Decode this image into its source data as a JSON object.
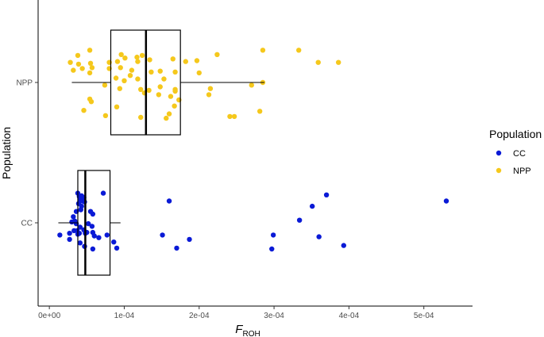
{
  "chart_data": {
    "type": "boxplot_jitter",
    "orientation": "horizontal",
    "xlabel_main": "F",
    "xlabel_sub": "ROH",
    "ylabel": "Population",
    "xlim": [
      -1.5e-05,
      0.000565
    ],
    "x_ticks": [
      0,
      0.0001,
      0.0002,
      0.0003,
      0.0004,
      0.0005
    ],
    "x_tick_labels": [
      "0e+00",
      "1e-04",
      "2e-04",
      "3e-04",
      "4e-04",
      "5e-04"
    ],
    "categories": [
      "CC",
      "NPP"
    ],
    "legend": {
      "title": "Population",
      "entries": [
        {
          "label": "CC",
          "color": "#0a1ad6"
        },
        {
          "label": "NPP",
          "color": "#f5c81c"
        }
      ]
    },
    "boxes": [
      {
        "category": "CC",
        "whisker_low": 1.2e-05,
        "q1": 3.8e-05,
        "median": 4.8e-05,
        "q3": 8.1e-05,
        "whisker_high": 9.5e-05
      },
      {
        "category": "NPP",
        "whisker_low": 3e-05,
        "q1": 8.2e-05,
        "median": 0.000129,
        "q3": 0.000175,
        "whisker_high": 0.000287
      }
    ],
    "series": [
      {
        "name": "CC",
        "color": "#0a1ad6",
        "points": [
          [
            3.8e-05,
            0.34
          ],
          [
            4e-05,
            0.3
          ],
          [
            4.3e-05,
            0.31
          ],
          [
            4.1e-05,
            0.27
          ],
          [
            4.6e-05,
            0.29
          ],
          [
            4.4e-05,
            0.25
          ],
          [
            3.9e-05,
            0.22
          ],
          [
            4.7e-05,
            0.24
          ],
          [
            4.3e-05,
            0.19
          ],
          [
            4.2e-05,
            0.15
          ],
          [
            3.6e-05,
            0.13
          ],
          [
            5.5e-05,
            0.13
          ],
          [
            5.8e-05,
            0.1
          ],
          [
            3.2e-05,
            0.07
          ],
          [
            3.4e-05,
            0.02
          ],
          [
            3e-05,
            0.01
          ],
          [
            3.6e-05,
            -0.01
          ],
          [
            5.2e-05,
            -0.01
          ],
          [
            4.1e-05,
            -0.05
          ],
          [
            5.7e-05,
            -0.04
          ],
          [
            4.6e-05,
            -0.08
          ],
          [
            3.3e-05,
            -0.09
          ],
          [
            3.7e-05,
            -0.09
          ],
          [
            5e-05,
            -0.11
          ],
          [
            4e-05,
            -0.12
          ],
          [
            2.7e-05,
            -0.12
          ],
          [
            5.8e-05,
            -0.11
          ],
          [
            4.8e-05,
            -0.12
          ],
          [
            3.8e-05,
            -0.13
          ],
          [
            1.4e-05,
            -0.14
          ],
          [
            6e-05,
            -0.15
          ],
          [
            7.7e-05,
            -0.14
          ],
          [
            6.6e-05,
            -0.17
          ],
          [
            2.7e-05,
            -0.19
          ],
          [
            4.1e-05,
            -0.23
          ],
          [
            4.7e-05,
            -0.27
          ],
          [
            5.8e-05,
            -0.3
          ],
          [
            9e-05,
            -0.29
          ],
          [
            7.2e-05,
            0.34
          ],
          [
            8.6e-05,
            -0.22
          ],
          [
            0.00016,
            0.25
          ],
          [
            0.000151,
            -0.14
          ],
          [
            0.000187,
            -0.19
          ],
          [
            0.00017,
            -0.29
          ],
          [
            0.000297,
            -0.3
          ],
          [
            0.000299,
            -0.14
          ],
          [
            0.000334,
            0.03
          ],
          [
            0.000351,
            0.19
          ],
          [
            0.00037,
            0.32
          ],
          [
            0.00036,
            -0.16
          ],
          [
            0.000393,
            -0.26
          ],
          [
            0.00053,
            0.25
          ]
        ]
      },
      {
        "name": "NPP",
        "color": "#f5c81c",
        "points": [
          [
            5.4e-05,
            0.37
          ],
          [
            3.8e-05,
            0.31
          ],
          [
            9.6e-05,
            0.32
          ],
          [
            0.000117,
            0.29
          ],
          [
            0.000124,
            0.31
          ],
          [
            0.000101,
            0.28
          ],
          [
            2.8e-05,
            0.23
          ],
          [
            3.9e-05,
            0.21
          ],
          [
            5.5e-05,
            0.22
          ],
          [
            8e-05,
            0.23
          ],
          [
            9.1e-05,
            0.24
          ],
          [
            0.000118,
            0.24
          ],
          [
            0.000134,
            0.26
          ],
          [
            0.000165,
            0.27
          ],
          [
            0.000182,
            0.24
          ],
          [
            0.000197,
            0.25
          ],
          [
            0.000224,
            0.32
          ],
          [
            3.2e-05,
            0.14
          ],
          [
            4.4e-05,
            0.16
          ],
          [
            5.7e-05,
            0.17
          ],
          [
            5.4e-05,
            0.11
          ],
          [
            8e-05,
            0.16
          ],
          [
            9.5e-05,
            0.17
          ],
          [
            0.00011,
            0.14
          ],
          [
            0.000108,
            0.08
          ],
          [
            0.000136,
            0.12
          ],
          [
            0.000148,
            0.13
          ],
          [
            0.000168,
            0.12
          ],
          [
            8.9e-05,
            0.05
          ],
          [
            0.0001,
            0.02
          ],
          [
            0.000118,
            0.04
          ],
          [
            0.000153,
            0.04
          ],
          [
            0.000148,
            -0.05
          ],
          [
            0.0002,
            0.11
          ],
          [
            7.4e-05,
            -0.03
          ],
          [
            9.4e-05,
            -0.07
          ],
          [
            0.000127,
            -0.12
          ],
          [
            0.000133,
            -0.09
          ],
          [
            0.000146,
            -0.14
          ],
          [
            0.000168,
            -0.1
          ],
          [
            5.6e-05,
            -0.22
          ],
          [
            5.4e-05,
            -0.19
          ],
          [
            9e-05,
            -0.28
          ],
          [
            4.6e-05,
            -0.32
          ],
          [
            7.5e-05,
            -0.38
          ],
          [
            0.000122,
            -0.4
          ],
          [
            0.000122,
            -0.08
          ],
          [
            0.000162,
            -0.16
          ],
          [
            0.000173,
            -0.2
          ],
          [
            0.000167,
            -0.27
          ],
          [
            0.00016,
            -0.36
          ],
          [
            0.000156,
            -0.41
          ],
          [
            0.000213,
            -0.14
          ],
          [
            0.000215,
            -0.07
          ],
          [
            0.000168,
            -0.08
          ],
          [
            0.000241,
            -0.39
          ],
          [
            0.000247,
            -0.39
          ],
          [
            0.00027,
            -0.03
          ],
          [
            0.000281,
            -0.33
          ],
          [
            0.000285,
            0.0
          ],
          [
            0.000285,
            0.37
          ],
          [
            0.000333,
            0.37
          ],
          [
            0.000359,
            0.23
          ],
          [
            0.000386,
            0.23
          ]
        ]
      }
    ]
  }
}
